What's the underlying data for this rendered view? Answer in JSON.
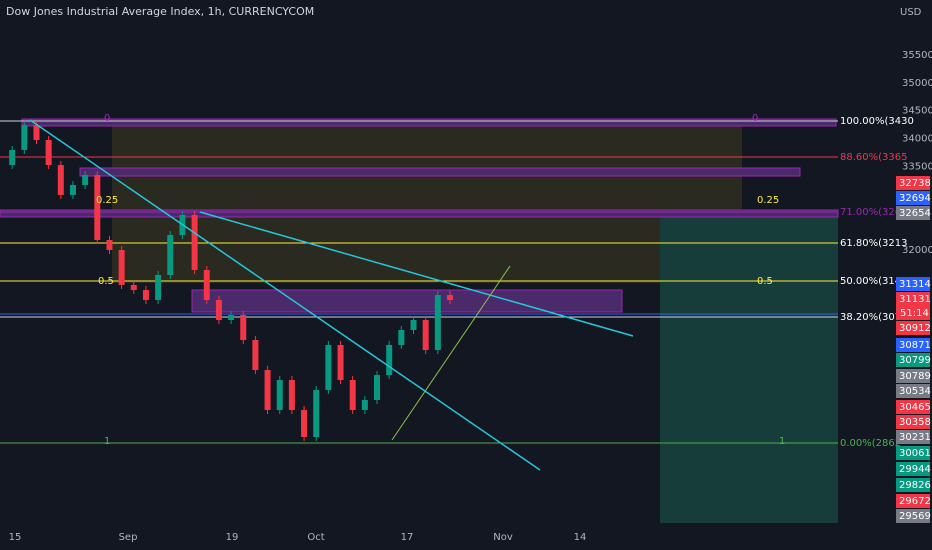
{
  "header": {
    "title": "Dow Jones Industrial Average Index, 1h, CURRENCYCOM",
    "currency": "USD"
  },
  "chart_data": {
    "type": "candlestick",
    "price": [
      33525,
      33795,
      34243,
      33974,
      33525,
      32987,
      33166,
      33346,
      32179,
      32000,
      31372,
      31282,
      31102,
      31551,
      32269,
      32628,
      31641,
      31102,
      30743,
      30833,
      30384,
      29846,
      29128,
      29666,
      29128,
      28643,
      29487,
      30295,
      29666,
      29128,
      29307,
      29756,
      30295,
      30564,
      30743,
      30205,
      31192,
      31102
    ],
    "ylim": [
      26615,
      36487
    ],
    "yticks": [
      35500,
      35000,
      34500,
      34000,
      33500,
      32000
    ],
    "xticks": [
      "15",
      "Sep",
      "19",
      "Oct",
      "17",
      "Nov",
      "14"
    ]
  },
  "fib_labels": [
    "100.00%(3430",
    "88.60%(3365",
    "71.00%(3265",
    "61.80%(3213",
    "50.00%(3146",
    "38.20%(3079",
    "0.00%(2862"
  ],
  "level_labels": [
    "0",
    "0",
    "0.25",
    "0.25",
    "0.5",
    "0.5",
    "1",
    "1"
  ],
  "price_tags": [
    {
      "value": 32738,
      "color": "#f23645"
    },
    {
      "value": 32694,
      "color": "#2962ff"
    },
    {
      "value": 32654,
      "color": "#787b86"
    },
    {
      "value": 31314,
      "color": "#2962ff"
    },
    {
      "value": 31131,
      "color": "#f23645"
    },
    {
      "value": 30912,
      "color": "#f23645"
    },
    {
      "value": 30871,
      "color": "#2962ff"
    },
    {
      "value": 30799,
      "color": "#089981"
    },
    {
      "value": 30789,
      "color": "#787b86"
    },
    {
      "value": 30534,
      "color": "#787b86"
    },
    {
      "value": 30465,
      "color": "#f23645"
    },
    {
      "value": 30358,
      "color": "#f23645"
    },
    {
      "value": 30231,
      "color": "#787b86"
    },
    {
      "value": 30061,
      "color": "#089981"
    },
    {
      "value": 29944,
      "color": "#089981"
    },
    {
      "value": 29826,
      "color": "#089981"
    },
    {
      "value": 29672,
      "color": "#f23645"
    },
    {
      "value": 29569,
      "color": "#787b86"
    }
  ],
  "countdown": "51:14"
}
